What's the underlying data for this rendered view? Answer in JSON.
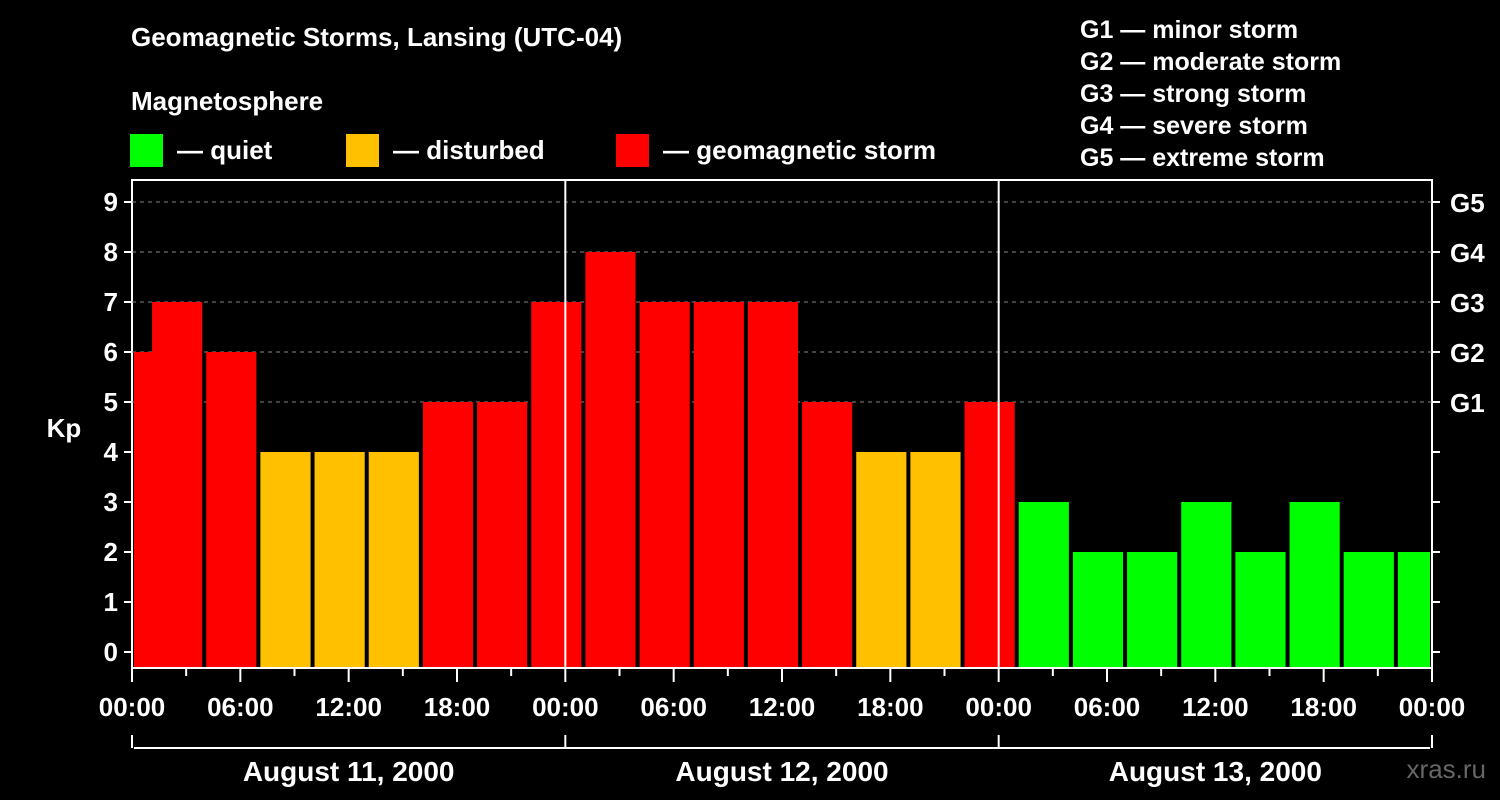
{
  "header": {
    "title": "Geomagnetic Storms, Lansing (UTC-04)",
    "subtitle": "Magnetosphere"
  },
  "legend": [
    {
      "label": "— quiet",
      "color": "#00ff00"
    },
    {
      "label": "— disturbed",
      "color": "#ffc000"
    },
    {
      "label": "— geomagnetic storm",
      "color": "#ff0000"
    }
  ],
  "storm_levels": [
    "G1 — minor storm",
    "G2 — moderate storm",
    "G3 — strong storm",
    "G4 — severe storm",
    "G5 — extreme storm"
  ],
  "watermark": "xras.ru",
  "chart_data": {
    "type": "bar",
    "title": "Geomagnetic Storms, Lansing (UTC-04)",
    "ylabel": "Kp",
    "ylim": [
      0,
      9
    ],
    "yticks": [
      "0",
      "1",
      "2",
      "3",
      "4",
      "5",
      "6",
      "7",
      "8",
      "9"
    ],
    "right_ticks": [
      {
        "kp": 5,
        "label": "G1"
      },
      {
        "kp": 6,
        "label": "G2"
      },
      {
        "kp": 7,
        "label": "G3"
      },
      {
        "kp": 8,
        "label": "G4"
      },
      {
        "kp": 9,
        "label": "G5"
      }
    ],
    "x_tick_labels": [
      "00:00",
      "06:00",
      "12:00",
      "18:00",
      "00:00",
      "06:00",
      "12:00",
      "18:00",
      "00:00",
      "06:00",
      "12:00",
      "18:00",
      "00:00"
    ],
    "days": [
      "August 11, 2000",
      "August 12, 2000",
      "August 13, 2000"
    ],
    "colors": {
      "quiet": "#00ff00",
      "disturbed": "#ffc000",
      "storm": "#ff0000"
    },
    "bars": [
      {
        "start_hour": 0,
        "end_hour": 2,
        "kp": 6
      },
      {
        "start_hour": 1,
        "end_hour": 4,
        "kp": 7
      },
      {
        "start_hour": 4,
        "end_hour": 7,
        "kp": 6
      },
      {
        "start_hour": 7,
        "end_hour": 10,
        "kp": 4
      },
      {
        "start_hour": 10,
        "end_hour": 13,
        "kp": 4
      },
      {
        "start_hour": 13,
        "end_hour": 16,
        "kp": 4
      },
      {
        "start_hour": 16,
        "end_hour": 19,
        "kp": 5
      },
      {
        "start_hour": 19,
        "end_hour": 22,
        "kp": 5
      },
      {
        "start_hour": 22,
        "end_hour": 25,
        "kp": 7
      },
      {
        "start_hour": 25,
        "end_hour": 28,
        "kp": 8
      },
      {
        "start_hour": 28,
        "end_hour": 31,
        "kp": 7
      },
      {
        "start_hour": 31,
        "end_hour": 34,
        "kp": 7
      },
      {
        "start_hour": 34,
        "end_hour": 37,
        "kp": 7
      },
      {
        "start_hour": 37,
        "end_hour": 40,
        "kp": 5
      },
      {
        "start_hour": 40,
        "end_hour": 43,
        "kp": 4
      },
      {
        "start_hour": 43,
        "end_hour": 46,
        "kp": 4
      },
      {
        "start_hour": 46,
        "end_hour": 49,
        "kp": 5
      },
      {
        "start_hour": 49,
        "end_hour": 52,
        "kp": 3
      },
      {
        "start_hour": 52,
        "end_hour": 55,
        "kp": 2
      },
      {
        "start_hour": 55,
        "end_hour": 58,
        "kp": 2
      },
      {
        "start_hour": 58,
        "end_hour": 61,
        "kp": 3
      },
      {
        "start_hour": 61,
        "end_hour": 64,
        "kp": 2
      },
      {
        "start_hour": 64,
        "end_hour": 67,
        "kp": 3
      },
      {
        "start_hour": 67,
        "end_hour": 70,
        "kp": 2
      },
      {
        "start_hour": 70,
        "end_hour": 72,
        "kp": 2
      }
    ]
  }
}
